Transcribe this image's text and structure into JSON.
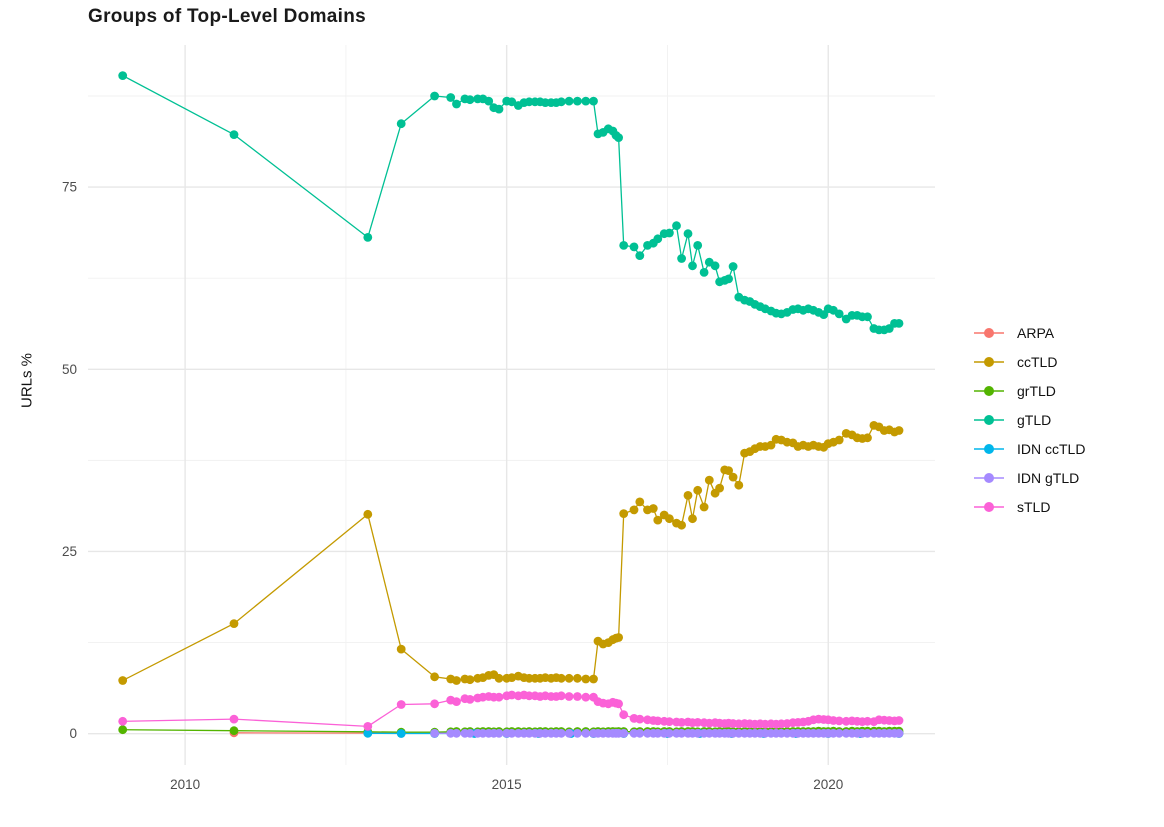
{
  "title": "Groups of Top-Level Domains",
  "y_axis": {
    "label": "URLs %",
    "tick_labels": [
      "0",
      "25",
      "50",
      "75"
    ]
  },
  "x_axis": {
    "tick_labels": [
      "2010",
      "2015",
      "2020"
    ]
  },
  "legend": {
    "items": [
      {
        "label": "ARPA",
        "color": "#F8766D"
      },
      {
        "label": "ccTLD",
        "color": "#C49A00"
      },
      {
        "label": "grTLD",
        "color": "#53B400"
      },
      {
        "label": "gTLD",
        "color": "#00C094"
      },
      {
        "label": "IDN ccTLD",
        "color": "#00B6EB"
      },
      {
        "label": "IDN gTLD",
        "color": "#A58AFF"
      },
      {
        "label": "sTLD",
        "color": "#FB61D7"
      }
    ]
  },
  "colors": {
    "grid_major": "#E7E7E7",
    "grid_minor": "#F1F1F1",
    "tick_text": "#4D4D4D",
    "title_text": "#1a1a1a"
  },
  "chart_data": {
    "type": "line",
    "title": "Groups of Top-Level Domains",
    "xlabel": "",
    "ylabel": "URLs %",
    "xlim": [
      2008.49,
      2021.66
    ],
    "ylim": [
      -4.3,
      94.5
    ],
    "x_ticks": [
      2010,
      2015,
      2020
    ],
    "x_minor": [
      2012.5,
      2017.5
    ],
    "y_ticks": [
      0,
      25,
      50,
      75
    ],
    "y_minor": [
      12.5,
      37.5,
      62.5,
      87.5
    ],
    "grid": true,
    "legend_position": "right",
    "series": [
      {
        "name": "ARPA",
        "color": "#F8766D",
        "x": [
          2010.76,
          2012.84,
          2013.36,
          2013.88,
          2014.5,
          2015.0,
          2015.5,
          2016.0,
          2016.35,
          2016.82,
          2017.5,
          2018.0,
          2018.5,
          2019.0,
          2019.5,
          2020.0,
          2020.5,
          2021.1
        ],
        "y": [
          0.12,
          0.08,
          0.05,
          0.04,
          0.03,
          0.03,
          0.03,
          0.03,
          0.03,
          0.03,
          0.03,
          0.03,
          0.03,
          0.03,
          0.03,
          0.03,
          0.03,
          0.03
        ]
      },
      {
        "name": "ccTLD",
        "color": "#C49A00",
        "x": [
          2009.03,
          2010.76,
          2012.84,
          2013.36,
          2013.88,
          2014.13,
          2014.22,
          2014.35,
          2014.43,
          2014.55,
          2014.63,
          2014.72,
          2014.8,
          2014.88,
          2015.0,
          2015.08,
          2015.18,
          2015.27,
          2015.35,
          2015.44,
          2015.52,
          2015.6,
          2015.69,
          2015.77,
          2015.85,
          2015.97,
          2016.1,
          2016.23,
          2016.35,
          2016.42,
          2016.5,
          2016.58,
          2016.65,
          2016.7,
          2016.74,
          2016.82,
          2016.98,
          2017.07,
          2017.19,
          2017.28,
          2017.35,
          2017.45,
          2017.53,
          2017.64,
          2017.72,
          2017.82,
          2017.89,
          2017.97,
          2018.07,
          2018.15,
          2018.24,
          2018.31,
          2018.39,
          2018.45,
          2018.52,
          2018.61,
          2018.7,
          2018.78,
          2018.86,
          2018.94,
          2019.02,
          2019.11,
          2019.19,
          2019.27,
          2019.36,
          2019.45,
          2019.53,
          2019.61,
          2019.69,
          2019.77,
          2019.85,
          2019.93,
          2020.0,
          2020.08,
          2020.17,
          2020.28,
          2020.37,
          2020.45,
          2020.53,
          2020.61,
          2020.71,
          2020.79,
          2020.87,
          2020.95,
          2021.03,
          2021.1
        ],
        "y": [
          7.3,
          15.1,
          30.1,
          11.6,
          7.8,
          7.5,
          7.3,
          7.5,
          7.4,
          7.6,
          7.7,
          8.0,
          8.1,
          7.6,
          7.6,
          7.7,
          7.9,
          7.7,
          7.6,
          7.6,
          7.6,
          7.7,
          7.6,
          7.7,
          7.6,
          7.6,
          7.6,
          7.5,
          7.5,
          12.7,
          12.3,
          12.5,
          12.9,
          13.1,
          13.2,
          30.2,
          30.7,
          31.8,
          30.7,
          30.9,
          29.3,
          30.0,
          29.5,
          28.9,
          28.6,
          32.7,
          29.5,
          33.4,
          31.1,
          34.8,
          33.0,
          33.7,
          36.2,
          36.1,
          35.2,
          34.1,
          38.5,
          38.7,
          39.1,
          39.4,
          39.4,
          39.6,
          40.4,
          40.3,
          40.0,
          39.9,
          39.4,
          39.6,
          39.4,
          39.6,
          39.4,
          39.3,
          39.8,
          40.0,
          40.3,
          41.2,
          41.0,
          40.6,
          40.5,
          40.6,
          42.3,
          42.1,
          41.6,
          41.7,
          41.4,
          41.6
        ]
      },
      {
        "name": "grTLD",
        "color": "#53B400",
        "x": [
          2009.03,
          2010.76,
          2012.84,
          2013.36,
          2013.88,
          2014.13,
          2014.22,
          2014.35,
          2014.43,
          2014.55,
          2014.63,
          2014.72,
          2014.8,
          2014.88,
          2015.0,
          2015.08,
          2015.18,
          2015.27,
          2015.35,
          2015.44,
          2015.52,
          2015.6,
          2015.69,
          2015.77,
          2015.85,
          2015.97,
          2016.1,
          2016.23,
          2016.35,
          2016.42,
          2016.5,
          2016.58,
          2016.65,
          2016.7,
          2016.74,
          2016.82,
          2016.98,
          2017.07,
          2017.19,
          2017.28,
          2017.35,
          2017.45,
          2017.53,
          2017.64,
          2017.72,
          2017.82,
          2017.89,
          2017.97,
          2018.07,
          2018.15,
          2018.24,
          2018.31,
          2018.39,
          2018.45,
          2018.52,
          2018.61,
          2018.7,
          2018.78,
          2018.86,
          2018.94,
          2019.02,
          2019.11,
          2019.19,
          2019.27,
          2019.36,
          2019.45,
          2019.53,
          2019.61,
          2019.69,
          2019.77,
          2019.85,
          2019.93,
          2020.0,
          2020.08,
          2020.17,
          2020.28,
          2020.37,
          2020.45,
          2020.53,
          2020.61,
          2020.71,
          2020.79,
          2020.87,
          2020.95,
          2021.03,
          2021.1
        ],
        "y": [
          0.55,
          0.4,
          0.25,
          0.2,
          0.2,
          0.25,
          0.3,
          0.25,
          0.3,
          0.25,
          0.3,
          0.3,
          0.25,
          0.3,
          0.25,
          0.3,
          0.3,
          0.25,
          0.3,
          0.25,
          0.3,
          0.3,
          0.25,
          0.3,
          0.3,
          0.25,
          0.3,
          0.3,
          0.25,
          0.3,
          0.25,
          0.3,
          0.3,
          0.25,
          0.3,
          0.3,
          0.25,
          0.3,
          0.3,
          0.3,
          0.25,
          0.3,
          0.3,
          0.25,
          0.3,
          0.3,
          0.3,
          0.25,
          0.3,
          0.3,
          0.25,
          0.3,
          0.3,
          0.3,
          0.25,
          0.3,
          0.3,
          0.3,
          0.3,
          0.25,
          0.3,
          0.3,
          0.3,
          0.3,
          0.3,
          0.3,
          0.3,
          0.3,
          0.3,
          0.3,
          0.35,
          0.3,
          0.3,
          0.35,
          0.3,
          0.3,
          0.35,
          0.3,
          0.35,
          0.35,
          0.35,
          0.35,
          0.3,
          0.35,
          0.35,
          0.35
        ]
      },
      {
        "name": "gTLD",
        "color": "#00C094",
        "x": [
          2009.03,
          2010.76,
          2012.84,
          2013.36,
          2013.88,
          2014.13,
          2014.22,
          2014.35,
          2014.43,
          2014.55,
          2014.63,
          2014.72,
          2014.8,
          2014.88,
          2015.0,
          2015.08,
          2015.18,
          2015.27,
          2015.35,
          2015.44,
          2015.52,
          2015.6,
          2015.69,
          2015.77,
          2015.85,
          2015.97,
          2016.1,
          2016.23,
          2016.35,
          2016.42,
          2016.5,
          2016.58,
          2016.65,
          2016.7,
          2016.74,
          2016.82,
          2016.98,
          2017.07,
          2017.19,
          2017.28,
          2017.35,
          2017.45,
          2017.53,
          2017.64,
          2017.72,
          2017.82,
          2017.89,
          2017.97,
          2018.07,
          2018.15,
          2018.24,
          2018.31,
          2018.39,
          2018.45,
          2018.52,
          2018.61,
          2018.7,
          2018.78,
          2018.86,
          2018.94,
          2019.02,
          2019.11,
          2019.19,
          2019.27,
          2019.36,
          2019.45,
          2019.53,
          2019.61,
          2019.69,
          2019.77,
          2019.85,
          2019.93,
          2020.0,
          2020.08,
          2020.17,
          2020.28,
          2020.37,
          2020.45,
          2020.53,
          2020.61,
          2020.71,
          2020.79,
          2020.87,
          2020.95,
          2021.03,
          2021.1
        ],
        "y": [
          90.3,
          82.2,
          68.1,
          83.7,
          87.5,
          87.3,
          86.4,
          87.1,
          87.0,
          87.1,
          87.1,
          86.8,
          85.9,
          85.7,
          86.8,
          86.7,
          86.2,
          86.6,
          86.7,
          86.7,
          86.7,
          86.6,
          86.6,
          86.6,
          86.7,
          86.8,
          86.8,
          86.8,
          86.8,
          82.3,
          82.5,
          83.0,
          82.7,
          82.1,
          81.8,
          67.0,
          66.8,
          65.6,
          67.0,
          67.3,
          67.9,
          68.6,
          68.7,
          69.7,
          65.2,
          68.6,
          64.2,
          67.0,
          63.3,
          64.7,
          64.2,
          62.0,
          62.2,
          62.4,
          64.1,
          59.9,
          59.5,
          59.3,
          58.9,
          58.6,
          58.3,
          58.0,
          57.7,
          57.6,
          57.8,
          58.2,
          58.3,
          58.1,
          58.3,
          58.1,
          57.8,
          57.5,
          58.3,
          58.1,
          57.6,
          56.9,
          57.4,
          57.4,
          57.2,
          57.2,
          55.6,
          55.4,
          55.4,
          55.6,
          56.3,
          56.3
        ]
      },
      {
        "name": "IDN ccTLD",
        "color": "#00B6EB",
        "x": [
          2012.84,
          2013.36,
          2013.88,
          2014.5,
          2015.0,
          2015.5,
          2016.0,
          2016.35,
          2016.82,
          2017.5,
          2018.0,
          2018.5,
          2019.0,
          2019.5,
          2020.0,
          2020.5,
          2021.1
        ],
        "y": [
          0.05,
          0.02,
          0.02,
          0.02,
          0.02,
          0.02,
          0.02,
          0.02,
          0.02,
          0.02,
          0.02,
          0.02,
          0.02,
          0.02,
          0.02,
          0.02,
          0.02
        ]
      },
      {
        "name": "IDN gTLD",
        "color": "#A58AFF",
        "x": [
          2013.88,
          2014.13,
          2014.22,
          2014.35,
          2014.43,
          2014.55,
          2014.63,
          2014.72,
          2014.8,
          2014.88,
          2015.0,
          2015.08,
          2015.18,
          2015.27,
          2015.35,
          2015.44,
          2015.52,
          2015.6,
          2015.69,
          2015.77,
          2015.85,
          2015.97,
          2016.1,
          2016.23,
          2016.35,
          2016.42,
          2016.5,
          2016.58,
          2016.65,
          2016.7,
          2016.74,
          2016.82,
          2016.98,
          2017.07,
          2017.19,
          2017.28,
          2017.35,
          2017.45,
          2017.53,
          2017.64,
          2017.72,
          2017.82,
          2017.89,
          2017.97,
          2018.07,
          2018.15,
          2018.24,
          2018.31,
          2018.39,
          2018.45,
          2018.52,
          2018.61,
          2018.7,
          2018.78,
          2018.86,
          2018.94,
          2019.02,
          2019.11,
          2019.19,
          2019.27,
          2019.36,
          2019.45,
          2019.53,
          2019.61,
          2019.69,
          2019.77,
          2019.85,
          2019.93,
          2020.0,
          2020.08,
          2020.17,
          2020.28,
          2020.37,
          2020.45,
          2020.53,
          2020.61,
          2020.71,
          2020.79,
          2020.87,
          2020.95,
          2021.03,
          2021.1
        ],
        "y": [
          0.05,
          0.05,
          0.05,
          0.05,
          0.05,
          0.05,
          0.05,
          0.05,
          0.05,
          0.05,
          0.05,
          0.05,
          0.05,
          0.05,
          0.05,
          0.05,
          0.05,
          0.05,
          0.05,
          0.05,
          0.05,
          0.05,
          0.05,
          0.05,
          0.05,
          0.05,
          0.05,
          0.05,
          0.05,
          0.05,
          0.05,
          0.05,
          0.05,
          0.05,
          0.05,
          0.05,
          0.05,
          0.05,
          0.05,
          0.05,
          0.05,
          0.05,
          0.05,
          0.05,
          0.05,
          0.05,
          0.05,
          0.05,
          0.05,
          0.05,
          0.05,
          0.05,
          0.05,
          0.05,
          0.05,
          0.05,
          0.05,
          0.05,
          0.05,
          0.05,
          0.05,
          0.05,
          0.05,
          0.05,
          0.05,
          0.05,
          0.05,
          0.05,
          0.05,
          0.05,
          0.05,
          0.05,
          0.05,
          0.05,
          0.05,
          0.05,
          0.05,
          0.05,
          0.05,
          0.05,
          0.05,
          0.05
        ]
      },
      {
        "name": "sTLD",
        "color": "#FB61D7",
        "x": [
          2009.03,
          2010.76,
          2012.84,
          2013.36,
          2013.88,
          2014.13,
          2014.22,
          2014.35,
          2014.43,
          2014.55,
          2014.63,
          2014.72,
          2014.8,
          2014.88,
          2015.0,
          2015.08,
          2015.18,
          2015.27,
          2015.35,
          2015.44,
          2015.52,
          2015.6,
          2015.69,
          2015.77,
          2015.85,
          2015.97,
          2016.1,
          2016.23,
          2016.35,
          2016.42,
          2016.5,
          2016.58,
          2016.65,
          2016.7,
          2016.74,
          2016.82,
          2016.98,
          2017.07,
          2017.19,
          2017.28,
          2017.35,
          2017.45,
          2017.53,
          2017.64,
          2017.72,
          2017.82,
          2017.89,
          2017.97,
          2018.07,
          2018.15,
          2018.24,
          2018.31,
          2018.39,
          2018.45,
          2018.52,
          2018.61,
          2018.7,
          2018.78,
          2018.86,
          2018.94,
          2019.02,
          2019.11,
          2019.19,
          2019.27,
          2019.36,
          2019.45,
          2019.53,
          2019.61,
          2019.69,
          2019.77,
          2019.85,
          2019.93,
          2020.0,
          2020.08,
          2020.17,
          2020.28,
          2020.37,
          2020.45,
          2020.53,
          2020.61,
          2020.71,
          2020.79,
          2020.87,
          2020.95,
          2021.03,
          2021.1
        ],
        "y": [
          1.7,
          2.0,
          1.0,
          4.0,
          4.1,
          4.6,
          4.4,
          4.8,
          4.7,
          4.9,
          5.0,
          5.1,
          5.0,
          5.0,
          5.2,
          5.3,
          5.2,
          5.3,
          5.2,
          5.2,
          5.1,
          5.2,
          5.1,
          5.1,
          5.2,
          5.1,
          5.1,
          5.0,
          5.0,
          4.4,
          4.2,
          4.1,
          4.3,
          4.2,
          4.1,
          2.6,
          2.1,
          2.0,
          1.9,
          1.8,
          1.75,
          1.7,
          1.65,
          1.6,
          1.55,
          1.6,
          1.5,
          1.55,
          1.5,
          1.45,
          1.5,
          1.45,
          1.4,
          1.45,
          1.4,
          1.35,
          1.4,
          1.35,
          1.3,
          1.35,
          1.3,
          1.35,
          1.3,
          1.35,
          1.4,
          1.5,
          1.55,
          1.6,
          1.7,
          1.9,
          2.0,
          1.95,
          1.9,
          1.8,
          1.75,
          1.7,
          1.75,
          1.7,
          1.65,
          1.7,
          1.65,
          1.9,
          1.85,
          1.8,
          1.75,
          1.8
        ]
      }
    ]
  }
}
